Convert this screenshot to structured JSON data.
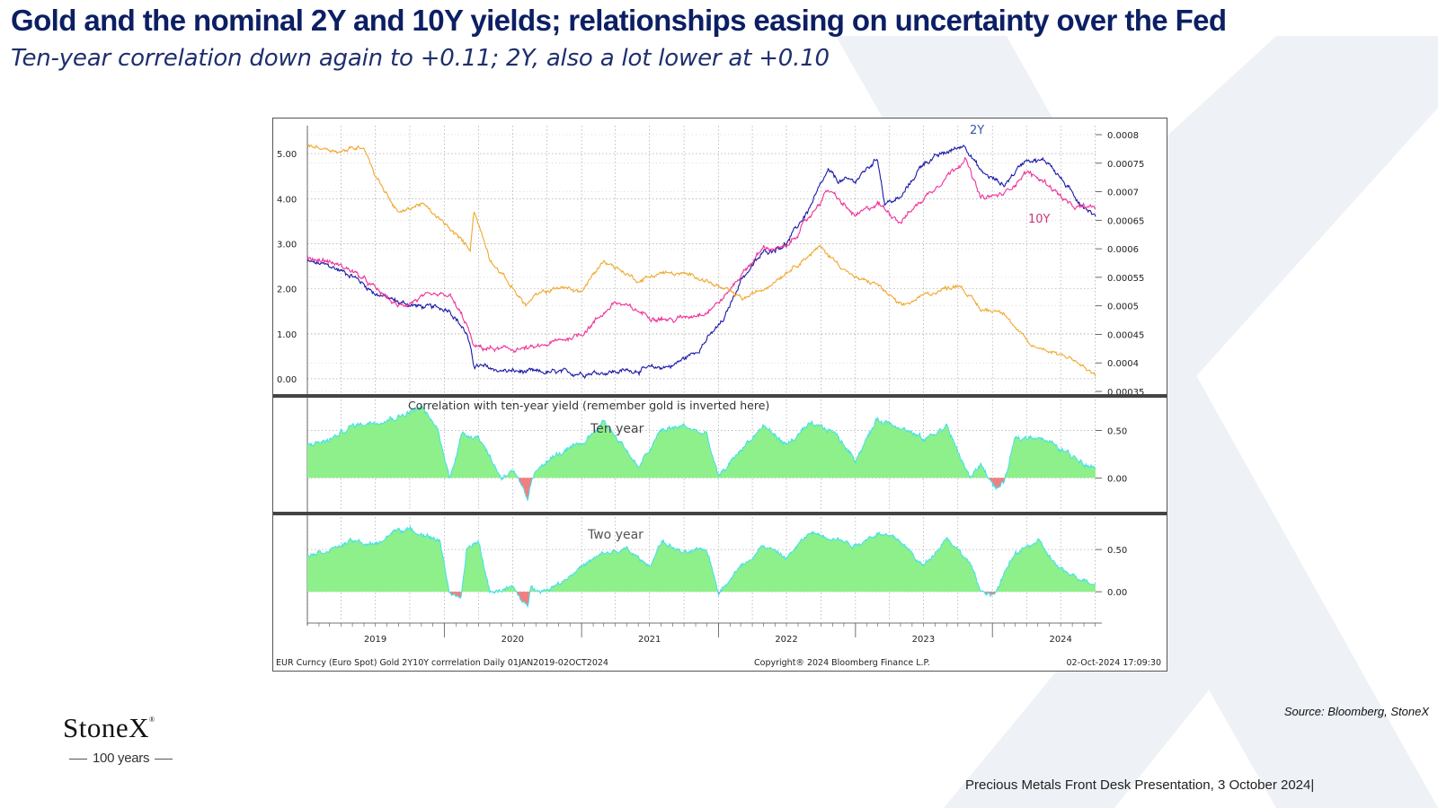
{
  "slide": {
    "title": "Gold and the nominal 2Y and 10Y yields; relationships easing on uncertainty over the Fed",
    "subtitle": "Ten-year correlation down again to +0.11; 2Y, also a lot lower at +0.10",
    "source": "Source: Bloomberg, StoneX",
    "footer": "Precious Metals Front Desk Presentation, 3 October 2024",
    "logo_text": "StoneX",
    "logo_mark": "®",
    "logo_tagline": "100 years",
    "colors": {
      "title": "#0c1f64",
      "gold": "#f0a830",
      "two_year": "#1a1aa8",
      "ten_year": "#ee3399",
      "corr_fill": "#8ef08a",
      "corr_line": "#40e0ee",
      "corr_negative": "#f08080",
      "watermark": "#eef1f6"
    }
  },
  "chart_data": [
    {
      "type": "line",
      "panel": "top",
      "x_range": [
        "2019-01-01",
        "2024-10-02"
      ],
      "left_axis": {
        "ticks": [
          "0.00",
          "1.00",
          "2.00",
          "3.00",
          "4.00",
          "5.00"
        ],
        "ylim": [
          -0.2,
          5.5
        ]
      },
      "right_axis": {
        "ticks": [
          "0.00035",
          "0.0004",
          "0.00045",
          "0.0005",
          "0.00055",
          "0.0006",
          "0.00065",
          "0.0007",
          "0.00075",
          "0.0008"
        ],
        "ylim": [
          0.00035,
          0.0008
        ]
      },
      "grid": true,
      "series": [
        {
          "name": "2Y",
          "axis": "left",
          "x": [
            "2019-01-01",
            "2019-03-01",
            "2019-05-01",
            "2019-07-01",
            "2019-09-01",
            "2019-11-01",
            "2020-01-15",
            "2020-03-01",
            "2020-03-20",
            "2020-06-01",
            "2020-09-01",
            "2021-01-01",
            "2021-04-01",
            "2021-07-01",
            "2021-09-01",
            "2021-11-01",
            "2022-01-15",
            "2022-03-01",
            "2022-05-01",
            "2022-07-01",
            "2022-09-01",
            "2022-10-20",
            "2022-11-15",
            "2023-01-01",
            "2023-03-01",
            "2023-03-20",
            "2023-05-01",
            "2023-07-01",
            "2023-10-20",
            "2023-12-01",
            "2024-02-01",
            "2024-04-01",
            "2024-06-01",
            "2024-08-01",
            "2024-10-02"
          ],
          "y": [
            2.6,
            2.5,
            2.3,
            1.9,
            1.7,
            1.6,
            1.55,
            1.0,
            0.3,
            0.18,
            0.14,
            0.13,
            0.16,
            0.22,
            0.3,
            0.6,
            1.3,
            2.2,
            2.8,
            3.0,
            3.8,
            4.6,
            4.4,
            4.4,
            4.9,
            3.9,
            4.0,
            4.8,
            5.2,
            4.6,
            4.3,
            4.9,
            4.8,
            4.1,
            3.6
          ]
        },
        {
          "name": "10Y",
          "axis": "left",
          "x": [
            "2019-01-01",
            "2019-03-01",
            "2019-05-01",
            "2019-07-01",
            "2019-09-01",
            "2019-11-01",
            "2020-01-15",
            "2020-03-01",
            "2020-03-20",
            "2020-06-01",
            "2020-09-01",
            "2021-01-01",
            "2021-03-31",
            "2021-07-01",
            "2021-09-01",
            "2021-12-01",
            "2022-01-15",
            "2022-03-01",
            "2022-05-01",
            "2022-07-01",
            "2022-09-01",
            "2022-10-20",
            "2023-01-01",
            "2023-03-01",
            "2023-05-01",
            "2023-07-01",
            "2023-10-20",
            "2023-12-01",
            "2024-02-01",
            "2024-04-01",
            "2024-06-01",
            "2024-08-01",
            "2024-10-02"
          ],
          "y": [
            2.7,
            2.6,
            2.4,
            2.0,
            1.6,
            1.8,
            1.85,
            1.2,
            0.7,
            0.65,
            0.68,
            1.0,
            1.7,
            1.4,
            1.3,
            1.5,
            1.8,
            2.3,
            2.9,
            2.9,
            3.6,
            4.2,
            3.6,
            3.9,
            3.5,
            4.0,
            4.9,
            4.0,
            4.1,
            4.6,
            4.3,
            3.8,
            3.8
          ]
        },
        {
          "name": "Gold",
          "axis": "right",
          "inverted": true,
          "x": [
            "2019-01-01",
            "2019-04-01",
            "2019-06-01",
            "2019-06-30",
            "2019-09-01",
            "2019-11-01",
            "2020-01-15",
            "2020-03-10",
            "2020-03-20",
            "2020-05-01",
            "2020-08-05",
            "2020-09-01",
            "2020-11-01",
            "2021-01-01",
            "2021-03-01",
            "2021-06-01",
            "2021-08-01",
            "2021-11-01",
            "2022-03-08",
            "2022-05-01",
            "2022-09-28",
            "2022-11-01",
            "2023-01-01",
            "2023-02-28",
            "2023-05-04",
            "2023-07-01",
            "2023-10-05",
            "2023-12-01",
            "2024-02-01",
            "2024-03-01",
            "2024-04-12",
            "2024-06-01",
            "2024-08-01",
            "2024-10-02"
          ],
          "y": [
            0.000781,
            0.000771,
            0.00078,
            0.000731,
            0.000662,
            0.00068,
            0.000635,
            0.0006,
            0.000668,
            0.000584,
            0.000501,
            0.000518,
            0.000533,
            0.000525,
            0.00058,
            0.000544,
            0.000558,
            0.000553,
            0.000512,
            0.00053,
            0.000603,
            0.000583,
            0.000548,
            0.000538,
            0.000498,
            0.000518,
            0.000538,
            0.000493,
            0.000491,
            0.000462,
            0.00043,
            0.000422,
            0.000408,
            0.000376
          ]
        }
      ],
      "annotations": [
        "2Y",
        "10Y"
      ]
    },
    {
      "type": "area",
      "panel": "middle",
      "title": "Correlation with ten-year yield (remember gold is inverted here)",
      "label": "Ten year",
      "x_range": [
        "2019-01-01",
        "2024-10-02"
      ],
      "ylim": [
        -0.3,
        0.78
      ],
      "ticks": [
        "0.50",
        "0.00"
      ],
      "x": [
        "2019-01-01",
        "2019-03-01",
        "2019-05-01",
        "2019-07-01",
        "2019-09-01",
        "2019-11-01",
        "2019-12-15",
        "2020-01-15",
        "2020-02-15",
        "2020-04-01",
        "2020-06-01",
        "2020-07-01",
        "2020-08-10",
        "2020-08-20",
        "2020-09-15",
        "2020-11-01",
        "2021-01-01",
        "2021-03-01",
        "2021-05-01",
        "2021-06-01",
        "2021-08-01",
        "2021-10-01",
        "2021-12-01",
        "2022-01-01",
        "2022-03-01",
        "2022-05-01",
        "2022-07-01",
        "2022-09-01",
        "2022-11-01",
        "2023-01-01",
        "2023-03-01",
        "2023-05-01",
        "2023-07-01",
        "2023-09-01",
        "2023-11-01",
        "2023-12-01",
        "2024-01-10",
        "2024-02-01",
        "2024-03-01",
        "2024-05-01",
        "2024-07-01",
        "2024-10-02"
      ],
      "y": [
        0.35,
        0.4,
        0.55,
        0.6,
        0.65,
        0.75,
        0.5,
        0.0,
        0.45,
        0.45,
        0.0,
        0.1,
        -0.25,
        -0.05,
        0.15,
        0.25,
        0.35,
        0.6,
        0.3,
        0.1,
        0.5,
        0.55,
        0.45,
        0.0,
        0.3,
        0.55,
        0.35,
        0.55,
        0.5,
        0.2,
        0.62,
        0.55,
        0.4,
        0.55,
        0.0,
        0.15,
        -0.12,
        -0.05,
        0.4,
        0.45,
        0.3,
        0.11
      ]
    },
    {
      "type": "area",
      "panel": "bottom",
      "label": "Two year",
      "x_range": [
        "2019-01-01",
        "2024-10-02"
      ],
      "ylim": [
        -0.35,
        0.82
      ],
      "ticks": [
        "0.50",
        "0.00"
      ],
      "x": [
        "2019-01-01",
        "2019-03-01",
        "2019-05-01",
        "2019-07-01",
        "2019-09-01",
        "2019-11-01",
        "2019-12-20",
        "2020-01-15",
        "2020-02-15",
        "2020-03-01",
        "2020-04-01",
        "2020-05-01",
        "2020-07-01",
        "2020-08-10",
        "2020-08-20",
        "2020-09-15",
        "2020-11-01",
        "2021-01-01",
        "2021-03-01",
        "2021-05-01",
        "2021-07-01",
        "2021-08-01",
        "2021-10-01",
        "2021-12-01",
        "2022-01-01",
        "2022-03-01",
        "2022-05-01",
        "2022-07-01",
        "2022-09-01",
        "2022-11-01",
        "2023-01-01",
        "2023-03-01",
        "2023-05-01",
        "2023-07-01",
        "2023-09-01",
        "2023-11-01",
        "2023-12-01",
        "2024-01-10",
        "2024-02-01",
        "2024-03-01",
        "2024-05-01",
        "2024-07-01",
        "2024-10-02"
      ],
      "y": [
        0.45,
        0.5,
        0.6,
        0.55,
        0.75,
        0.7,
        0.6,
        0.0,
        -0.1,
        0.5,
        0.6,
        0.0,
        0.05,
        -0.2,
        0.1,
        0.0,
        0.1,
        0.3,
        0.45,
        0.5,
        0.3,
        0.6,
        0.45,
        0.5,
        0.0,
        0.3,
        0.55,
        0.4,
        0.7,
        0.65,
        0.55,
        0.7,
        0.6,
        0.3,
        0.65,
        0.35,
        0.0,
        -0.02,
        0.2,
        0.45,
        0.6,
        0.25,
        0.1
      ]
    }
  ],
  "x_axis": {
    "years": [
      "2019",
      "2020",
      "2021",
      "2022",
      "2023",
      "2024"
    ]
  },
  "chart_footer": {
    "left": "EUR Curncy (Euro Spot) Gold 2Y10Y corrrelation  Daily 01JAN2019-02OCT2024",
    "center": "Copyright® 2024 Bloomberg Finance L.P.",
    "right": "02-Oct-2024 17:09:30"
  }
}
